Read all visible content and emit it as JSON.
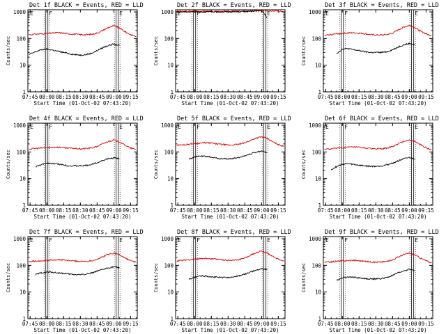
{
  "x_ticks": [
    "07:45",
    "08:00",
    "08:15",
    "08:30",
    "08:45",
    "09:00",
    "09:15"
  ],
  "y_ticks": [
    "1",
    "10",
    "100",
    "1000"
  ],
  "y_label": "Counts/sec",
  "x_label": "Start Time (01-Oct-02 07:43:20)",
  "series_colors": {
    "events": "#000000",
    "lld": "#dd0000"
  },
  "chart_data": [
    {
      "type": "line",
      "title": "Det 1f BLACK = Events, RED = LLD",
      "xlabel": "Start Time (01-Oct-02 07:43:20)",
      "ylabel": "Counts/sec",
      "yscale": "log",
      "xlim": [
        "07:43",
        "09:21"
      ],
      "ylim": [
        1,
        1200
      ],
      "x_ticks": [
        "07:45",
        "08:00",
        "08:15",
        "08:30",
        "08:45",
        "09:00",
        "09:15"
      ],
      "y_ticks": [
        1,
        10,
        100,
        1000
      ],
      "flags": [
        {
          "label": "E",
          "at": "07:43"
        },
        {
          "label": "F",
          "at": "08:00"
        },
        {
          "label": "E",
          "at": "09:03"
        }
      ],
      "x": [
        "07:44",
        "07:50",
        "07:55",
        "08:00",
        "08:05",
        "08:10",
        "08:15",
        "08:20",
        "08:25",
        "08:30",
        "08:35",
        "08:40",
        "08:45",
        "08:50",
        "08:55",
        "09:00",
        "09:05",
        "09:10",
        "09:15",
        "09:20"
      ],
      "series": [
        {
          "values": [
            140,
            145,
            150,
            155,
            160,
            165,
            160,
            150,
            145,
            140,
            140,
            145,
            160,
            200,
            260,
            300,
            250,
            180,
            140,
            120
          ]
        },
        {
          "values": [
            25,
            32,
            38,
            40,
            37,
            33,
            30,
            27,
            25,
            24,
            25,
            28,
            35,
            45,
            55,
            62,
            55,
            null,
            null,
            null
          ]
        }
      ]
    },
    {
      "type": "line",
      "title": "Det 2f BLACK = Events, RED = LLD",
      "xlabel": "Start Time (01-Oct-02 07:43:20)",
      "ylabel": "Counts/sec",
      "yscale": "log",
      "xlim": [
        "07:43",
        "09:21"
      ],
      "ylim": [
        1,
        1200
      ],
      "x_ticks": [
        "07:45",
        "08:00",
        "08:15",
        "08:30",
        "08:45",
        "09:00",
        "09:15"
      ],
      "y_ticks": [
        1,
        10,
        100,
        1000
      ],
      "flags": [
        {
          "label": "E",
          "at": "07:43"
        },
        {
          "label": "F",
          "at": "08:00"
        },
        {
          "label": "E",
          "at": "09:03"
        }
      ],
      "x": [
        "07:44",
        "07:50",
        "07:55",
        "08:00",
        "08:05",
        "08:10",
        "08:15",
        "08:20",
        "08:25",
        "08:30",
        "08:35",
        "08:40",
        "08:45",
        "08:50",
        "08:55",
        "09:00",
        "09:05",
        "09:10",
        "09:15",
        "09:20"
      ],
      "series": [
        {
          "values": [
            1050,
            1050,
            1050,
            1050,
            1050,
            1050,
            1050,
            1050,
            1050,
            1050,
            1050,
            1060,
            1080,
            1100,
            1120,
            1150,
            1130,
            1100,
            1050,
            1000
          ]
        },
        {
          "values": [
            1000,
            1000,
            1000,
            1000,
            1000,
            1000,
            1000,
            1000,
            1000,
            1000,
            1000,
            1010,
            1030,
            1050,
            1070,
            1090,
            600,
            null,
            null,
            null
          ]
        }
      ]
    },
    {
      "type": "line",
      "title": "Det 3f BLACK = Events, RED = LLD",
      "xlabel": "Start Time (01-Oct-02 07:43:20)",
      "ylabel": "Counts/sec",
      "yscale": "log",
      "xlim": [
        "07:43",
        "09:21"
      ],
      "ylim": [
        1,
        1200
      ],
      "x_ticks": [
        "07:45",
        "08:00",
        "08:15",
        "08:30",
        "08:45",
        "09:00",
        "09:15"
      ],
      "y_ticks": [
        1,
        10,
        100,
        1000
      ],
      "flags": [
        {
          "label": "E",
          "at": "07:43"
        },
        {
          "label": "F",
          "at": "08:00"
        },
        {
          "label": "E",
          "at": "09:03"
        }
      ],
      "x": [
        "07:44",
        "07:50",
        "07:55",
        "08:00",
        "08:05",
        "08:10",
        "08:15",
        "08:20",
        "08:25",
        "08:30",
        "08:35",
        "08:40",
        "08:45",
        "08:50",
        "08:55",
        "09:00",
        "09:05",
        "09:10",
        "09:15",
        "09:20"
      ],
      "series": [
        {
          "values": [
            130,
            140,
            150,
            155,
            160,
            165,
            160,
            150,
            140,
            135,
            135,
            140,
            160,
            210,
            270,
            310,
            260,
            190,
            150,
            125
          ]
        },
        {
          "values": [
            null,
            null,
            28,
            40,
            42,
            38,
            35,
            32,
            30,
            30,
            30,
            32,
            38,
            48,
            58,
            65,
            60,
            null,
            null,
            null
          ]
        }
      ]
    },
    {
      "type": "line",
      "title": "Det 4f BLACK = Events, RED = LLD",
      "xlabel": "Start Time (01-Oct-02 07:43:20)",
      "ylabel": "Counts/sec",
      "yscale": "log",
      "xlim": [
        "07:43",
        "09:21"
      ],
      "ylim": [
        1,
        1200
      ],
      "x_ticks": [
        "07:45",
        "08:00",
        "08:15",
        "08:30",
        "08:45",
        "09:00",
        "09:15"
      ],
      "y_ticks": [
        1,
        10,
        100,
        1000
      ],
      "flags": [
        {
          "label": "E",
          "at": "07:43"
        },
        {
          "label": "F",
          "at": "08:00"
        },
        {
          "label": "E",
          "at": "09:03"
        }
      ],
      "x": [
        "07:44",
        "07:50",
        "07:55",
        "08:00",
        "08:05",
        "08:10",
        "08:15",
        "08:20",
        "08:25",
        "08:30",
        "08:35",
        "08:40",
        "08:45",
        "08:50",
        "08:55",
        "09:00",
        "09:05",
        "09:10",
        "09:15",
        "09:20"
      ],
      "series": [
        {
          "values": [
            130,
            135,
            140,
            145,
            150,
            150,
            145,
            140,
            135,
            130,
            135,
            140,
            160,
            200,
            250,
            280,
            240,
            180,
            140,
            120
          ]
        },
        {
          "values": [
            null,
            28,
            33,
            38,
            37,
            35,
            33,
            30,
            30,
            30,
            31,
            34,
            40,
            48,
            55,
            60,
            55,
            null,
            null,
            null
          ]
        }
      ]
    },
    {
      "type": "line",
      "title": "Det 5f BLACK = Events, RED = LLD",
      "xlabel": "Start Time (01-Oct-02 07:43:20)",
      "ylabel": "Counts/sec",
      "yscale": "log",
      "xlim": [
        "07:43",
        "09:21"
      ],
      "ylim": [
        1,
        1200
      ],
      "x_ticks": [
        "07:45",
        "08:00",
        "08:15",
        "08:30",
        "08:45",
        "09:00",
        "09:15"
      ],
      "y_ticks": [
        1,
        10,
        100,
        1000
      ],
      "flags": [
        {
          "label": "E",
          "at": "07:43"
        },
        {
          "label": "F",
          "at": "08:00"
        },
        {
          "label": "E",
          "at": "09:03"
        }
      ],
      "x": [
        "07:44",
        "07:50",
        "07:55",
        "08:00",
        "08:05",
        "08:10",
        "08:15",
        "08:20",
        "08:25",
        "08:30",
        "08:35",
        "08:40",
        "08:45",
        "08:50",
        "08:55",
        "09:00",
        "09:05",
        "09:10",
        "09:15",
        "09:20"
      ],
      "series": [
        {
          "values": [
            180,
            185,
            195,
            205,
            215,
            220,
            215,
            200,
            190,
            180,
            185,
            195,
            220,
            270,
            330,
            370,
            320,
            240,
            190,
            160
          ]
        },
        {
          "values": [
            null,
            null,
            55,
            65,
            70,
            68,
            64,
            58,
            55,
            55,
            58,
            62,
            72,
            85,
            98,
            108,
            95,
            null,
            null,
            null
          ]
        }
      ]
    },
    {
      "type": "line",
      "title": "Det 6f BLACK = Events, RED = LLD",
      "xlabel": "Start Time (01-Oct-02 07:43:20)",
      "ylabel": "Counts/sec",
      "yscale": "log",
      "xlim": [
        "07:43",
        "09:21"
      ],
      "ylim": [
        1,
        1200
      ],
      "x_ticks": [
        "07:45",
        "08:00",
        "08:15",
        "08:30",
        "08:45",
        "09:00",
        "09:15"
      ],
      "y_ticks": [
        1,
        10,
        100,
        1000
      ],
      "flags": [
        {
          "label": "E",
          "at": "07:43"
        },
        {
          "label": "F",
          "at": "08:00"
        },
        {
          "label": "E",
          "at": "09:03"
        }
      ],
      "x": [
        "07:44",
        "07:50",
        "07:55",
        "08:00",
        "08:05",
        "08:10",
        "08:15",
        "08:20",
        "08:25",
        "08:30",
        "08:35",
        "08:40",
        "08:45",
        "08:50",
        "08:55",
        "09:00",
        "09:05",
        "09:10",
        "09:15",
        "09:20"
      ],
      "series": [
        {
          "values": [
            125,
            130,
            138,
            145,
            150,
            152,
            148,
            140,
            135,
            130,
            132,
            140,
            158,
            200,
            250,
            280,
            245,
            185,
            145,
            120
          ]
        },
        {
          "values": [
            null,
            22,
            28,
            35,
            36,
            34,
            32,
            30,
            29,
            29,
            30,
            33,
            38,
            46,
            55,
            62,
            55,
            null,
            null,
            null
          ]
        }
      ]
    },
    {
      "type": "line",
      "title": "Det 7f BLACK = Events, RED = LLD",
      "xlabel": "Start Time (01-Oct-02 07:43:20)",
      "ylabel": "Counts/sec",
      "yscale": "log",
      "xlim": [
        "07:43",
        "09:21"
      ],
      "ylim": [
        1,
        1200
      ],
      "x_ticks": [
        "07:45",
        "08:00",
        "08:15",
        "08:30",
        "08:45",
        "09:00",
        "09:15"
      ],
      "y_ticks": [
        1,
        10,
        100,
        1000
      ],
      "flags": [
        {
          "label": "E",
          "at": "07:43"
        },
        {
          "label": "F",
          "at": "08:00"
        },
        {
          "label": "E",
          "at": "09:03"
        }
      ],
      "x": [
        "07:44",
        "07:50",
        "07:55",
        "08:00",
        "08:05",
        "08:10",
        "08:15",
        "08:20",
        "08:25",
        "08:30",
        "08:35",
        "08:40",
        "08:45",
        "08:50",
        "08:55",
        "09:00",
        "09:05",
        "09:10",
        "09:15",
        "09:20"
      ],
      "series": [
        {
          "values": [
            140,
            145,
            150,
            155,
            160,
            162,
            158,
            150,
            145,
            140,
            142,
            150,
            170,
            210,
            260,
            290,
            250,
            190,
            150,
            130
          ]
        },
        {
          "values": [
            null,
            45,
            52,
            56,
            55,
            52,
            50,
            47,
            45,
            45,
            47,
            52,
            60,
            70,
            80,
            88,
            80,
            null,
            null,
            null
          ]
        }
      ]
    },
    {
      "type": "line",
      "title": "Det 8f BLACK = Events, RED = LLD",
      "xlabel": "Start Time (01-Oct-02 07:43:20)",
      "ylabel": "Counts/sec",
      "yscale": "log",
      "xlim": [
        "07:43",
        "09:21"
      ],
      "ylim": [
        1,
        1200
      ],
      "x_ticks": [
        "07:45",
        "08:00",
        "08:15",
        "08:30",
        "08:45",
        "09:00",
        "09:15"
      ],
      "y_ticks": [
        1,
        10,
        100,
        1000
      ],
      "flags": [
        {
          "label": "E",
          "at": "07:43"
        },
        {
          "label": "F",
          "at": "08:00"
        },
        {
          "label": "E",
          "at": "09:03"
        }
      ],
      "x": [
        "07:44",
        "07:50",
        "07:55",
        "08:00",
        "08:05",
        "08:10",
        "08:15",
        "08:20",
        "08:25",
        "08:30",
        "08:35",
        "08:40",
        "08:45",
        "08:50",
        "08:55",
        "09:00",
        "09:05",
        "09:10",
        "09:15",
        "09:20"
      ],
      "series": [
        {
          "values": [
            150,
            155,
            162,
            170,
            178,
            182,
            178,
            168,
            160,
            155,
            158,
            165,
            190,
            240,
            300,
            340,
            290,
            220,
            170,
            145
          ]
        },
        {
          "values": [
            null,
            null,
            30,
            36,
            40,
            40,
            38,
            36,
            35,
            35,
            37,
            40,
            47,
            56,
            66,
            75,
            70,
            null,
            null,
            null
          ]
        }
      ]
    },
    {
      "type": "line",
      "title": "Det 9f BLACK = Events, RED = LLD",
      "xlabel": "Start Time (01-Oct-02 07:43:20)",
      "ylabel": "Counts/sec",
      "yscale": "log",
      "xlim": [
        "07:43",
        "09:21"
      ],
      "ylim": [
        1,
        1200
      ],
      "x_ticks": [
        "07:45",
        "08:00",
        "08:15",
        "08:30",
        "08:45",
        "09:00",
        "09:15"
      ],
      "y_ticks": [
        1,
        10,
        100,
        1000
      ],
      "flags": [
        {
          "label": "E",
          "at": "07:43"
        },
        {
          "label": "F",
          "at": "08:00"
        },
        {
          "label": "E",
          "at": "09:03"
        }
      ],
      "x": [
        "07:44",
        "07:50",
        "07:55",
        "08:00",
        "08:05",
        "08:10",
        "08:15",
        "08:20",
        "08:25",
        "08:30",
        "08:35",
        "08:40",
        "08:45",
        "08:50",
        "08:55",
        "09:00",
        "09:05",
        "09:10",
        "09:15",
        "09:20"
      ],
      "series": [
        {
          "values": [
            130,
            135,
            142,
            148,
            152,
            155,
            150,
            142,
            136,
            132,
            134,
            142,
            162,
            205,
            255,
            285,
            248,
            188,
            148,
            124
          ]
        },
        {
          "values": [
            null,
            null,
            28,
            34,
            37,
            36,
            34,
            32,
            31,
            31,
            32,
            35,
            42,
            52,
            62,
            72,
            64,
            null,
            null,
            null
          ]
        }
      ]
    }
  ]
}
